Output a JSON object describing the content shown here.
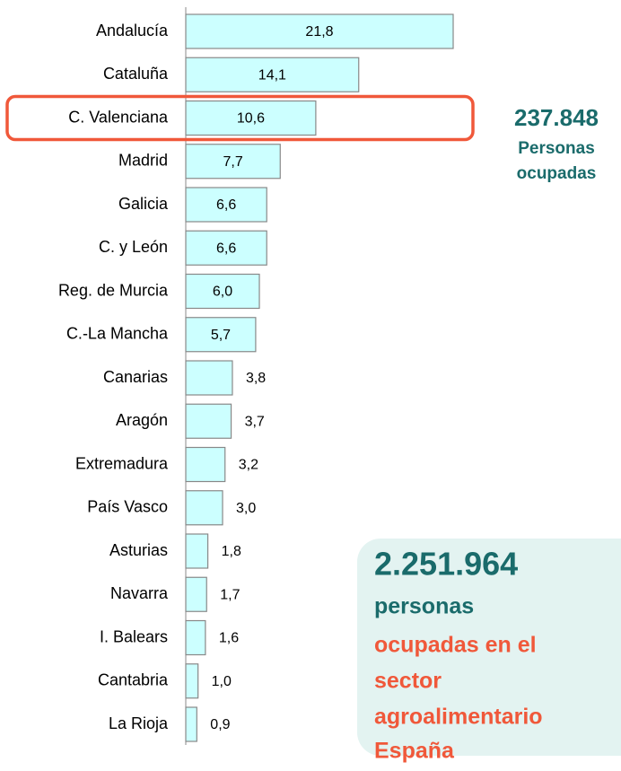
{
  "chart_data": {
    "type": "bar",
    "orientation": "horizontal",
    "categories": [
      "Andalucía",
      "Cataluña",
      "C. Valenciana",
      "Madrid",
      "Galicia",
      "C. y León",
      "Reg. de Murcia",
      "C.-La Mancha",
      "Canarias",
      "Aragón",
      "Extremadura",
      "País Vasco",
      "Asturias",
      "Navarra",
      "I. Balears",
      "Cantabria",
      "La Rioja"
    ],
    "values": [
      21.8,
      14.1,
      10.6,
      7.7,
      6.6,
      6.6,
      6.0,
      5.7,
      3.8,
      3.7,
      3.2,
      3.0,
      1.8,
      1.7,
      1.6,
      1.0,
      0.9
    ],
    "value_labels": [
      "21,8",
      "14,1",
      "10,6",
      "7,7",
      "6,6",
      "6,6",
      "6,0",
      "5,7",
      "3,8",
      "3,7",
      "3,2",
      "3,0",
      "1,8",
      "1,7",
      "1,6",
      "1,0",
      "0,9"
    ],
    "color": "#ccffff",
    "highlight": 2,
    "annotations": [
      "237.848",
      "Personas",
      "ocupadas"
    ],
    "callout": [
      "2.251.964",
      "personas",
      "ocupadas en el",
      "sector",
      "agroalimentario",
      "España"
    ]
  }
}
